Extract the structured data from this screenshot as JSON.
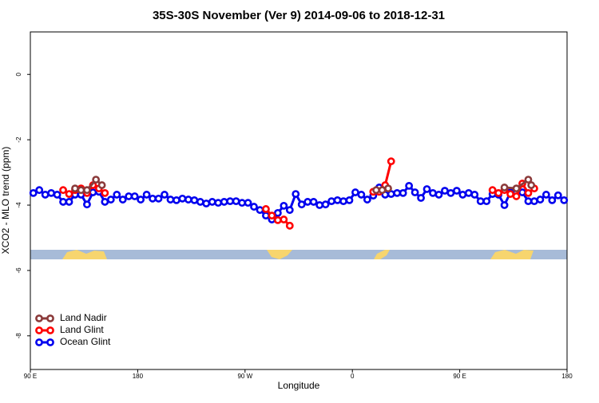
{
  "chart_data": {
    "type": "line",
    "title": "35S-30S November (Ver 9)   2014-09-06 to 2018-12-31",
    "x_label": "Longitude",
    "y_label": "XCO2 - MLO trend (ppm)",
    "xlim": [
      90,
      540
    ],
    "xticks": [
      {
        "value": 90,
        "label": "90 E"
      },
      180,
      {
        "value": 270,
        "label": "90 W"
      },
      {
        "value": 360,
        "label": "0"
      },
      {
        "value": 450,
        "label": "90 E"
      },
      180
    ],
    "ylim": [
      -9.03,
      1.3
    ],
    "yticks": [
      0,
      -2,
      -4,
      -6,
      -8
    ],
    "grid": false,
    "legend": "bottomleft",
    "series": [
      {
        "name": "Land Nadir",
        "color": "#8b3a3a",
        "x": [
          127.5,
          132.5,
          137.5,
          145,
          150,
          265,
          380,
          385,
          390,
          445,
          487.5,
          497.5,
          507.5,
          510
        ],
        "values": [
          -3.49,
          -3.54,
          -3.54,
          -3.22,
          -3.39,
          null,
          -3.54,
          -3.54,
          -3.49,
          null,
          -3.46,
          -3.49,
          -3.22,
          -3.39
        ]
      },
      {
        "name": "Land Glint",
        "color": "#ff0000",
        "x": [
          117.5,
          122.5,
          127.5,
          132.5,
          137.5,
          142.5,
          147.5,
          152.5,
          220,
          287.5,
          292.5,
          297.5,
          302.5,
          307.5,
          340,
          377.5,
          382.5,
          387.5,
          392.5,
          440,
          477.5,
          482.5,
          487.5,
          492.5,
          497.5,
          502.5,
          507.5,
          512.5
        ],
        "values": [
          -3.54,
          -3.66,
          -3.54,
          -3.49,
          -3.63,
          -3.39,
          -3.49,
          -3.63,
          null,
          -4.12,
          -4.32,
          -4.46,
          -4.44,
          -4.63,
          null,
          -3.59,
          -3.59,
          -3.39,
          -2.66,
          null,
          -3.54,
          -3.63,
          -3.54,
          -3.66,
          -3.73,
          -3.34,
          -3.63,
          -3.49
        ]
      },
      {
        "name": "Ocean Glint",
        "color": "#0000ee",
        "x": [
          92.5,
          97.5,
          102.5,
          107.5,
          112.5,
          117.5,
          122.5,
          127.5,
          132.5,
          137.5,
          142.5,
          147.5,
          152.5,
          157.5,
          162.5,
          167.5,
          172.5,
          177.5,
          182.5,
          187.5,
          192.5,
          197.5,
          202.5,
          207.5,
          212.5,
          217.5,
          222.5,
          227.5,
          232.5,
          237.5,
          242.5,
          247.5,
          252.5,
          257.5,
          262.5,
          267.5,
          272.5,
          277.5,
          282.5,
          287.5,
          292.5,
          297.5,
          302.5,
          307.5,
          312.5,
          317.5,
          322.5,
          327.5,
          332.5,
          337.5,
          342.5,
          347.5,
          352.5,
          357.5,
          362.5,
          367.5,
          372.5,
          377.5,
          382.5,
          387.5,
          392.5,
          397.5,
          402.5,
          407.5,
          412.5,
          417.5,
          422.5,
          427.5,
          432.5,
          437.5,
          442.5,
          447.5,
          452.5,
          457.5,
          462.5,
          467.5,
          472.5,
          477.5,
          482.5,
          487.5,
          492.5,
          497.5,
          502.5,
          507.5,
          512.5,
          517.5,
          522.5,
          527.5,
          532.5,
          537.5
        ],
        "values": [
          -3.63,
          -3.54,
          -3.68,
          -3.63,
          -3.68,
          -3.9,
          -3.9,
          -3.68,
          -3.68,
          -3.98,
          -3.61,
          -3.59,
          -3.9,
          -3.83,
          -3.68,
          -3.83,
          -3.73,
          -3.73,
          -3.83,
          -3.68,
          -3.8,
          -3.8,
          -3.68,
          -3.83,
          -3.85,
          -3.8,
          -3.83,
          -3.85,
          -3.9,
          -3.95,
          -3.9,
          -3.93,
          -3.9,
          -3.88,
          -3.88,
          -3.93,
          -3.93,
          -4.05,
          -4.15,
          -4.32,
          -4.44,
          -4.24,
          -4.02,
          -4.15,
          -3.66,
          -3.98,
          -3.9,
          -3.9,
          -4.0,
          -3.98,
          -3.88,
          -3.85,
          -3.88,
          -3.85,
          -3.61,
          -3.68,
          -3.83,
          -3.71,
          -3.46,
          -3.68,
          -3.66,
          -3.63,
          -3.63,
          -3.41,
          -3.61,
          -3.78,
          -3.51,
          -3.63,
          -3.68,
          -3.56,
          -3.63,
          -3.56,
          -3.68,
          -3.63,
          -3.68,
          -3.88,
          -3.88,
          -3.66,
          -3.68,
          -4.0,
          -3.61,
          -3.63,
          -3.61,
          -3.88,
          -3.88,
          -3.83,
          -3.68,
          -3.85,
          -3.7,
          -3.85
        ]
      }
    ]
  }
}
